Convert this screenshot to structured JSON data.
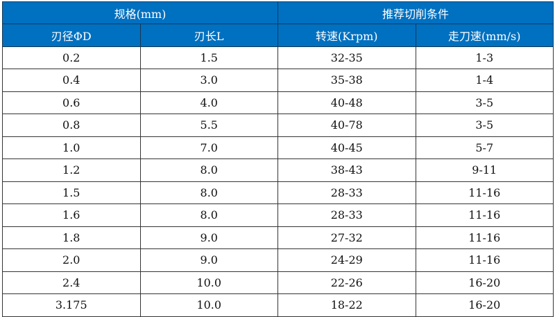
{
  "header": {
    "group_spec": "规格(mm)",
    "group_cutting": "推荐切削条件",
    "columns": [
      "刃径ΦD",
      "刃长L",
      "转速(Krpm)",
      "走刀速(mm/s)"
    ]
  },
  "colors": {
    "header_bg": "#0070C0",
    "header_text": "#ffffff"
  },
  "rows": [
    [
      "0.2",
      "1.5",
      "32-35",
      "1-3"
    ],
    [
      "0.4",
      "3.0",
      "35-38",
      "1-4"
    ],
    [
      "0.6",
      "4.0",
      "40-48",
      "3-5"
    ],
    [
      "0.8",
      "5.5",
      "40-78",
      "3-5"
    ],
    [
      "1.0",
      "7.0",
      "40-45",
      "5-7"
    ],
    [
      "1.2",
      "8.0",
      "38-43",
      "9-11"
    ],
    [
      "1.5",
      "8.0",
      "28-33",
      "11-16"
    ],
    [
      "1.6",
      "8.0",
      "28-33",
      "11-16"
    ],
    [
      "1.8",
      "9.0",
      "27-32",
      "11-16"
    ],
    [
      "2.0",
      "9.0",
      "24-29",
      "11-16"
    ],
    [
      "2.4",
      "10.0",
      "22-26",
      "16-20"
    ],
    [
      "3.175",
      "10.0",
      "18-22",
      "16-20"
    ]
  ]
}
